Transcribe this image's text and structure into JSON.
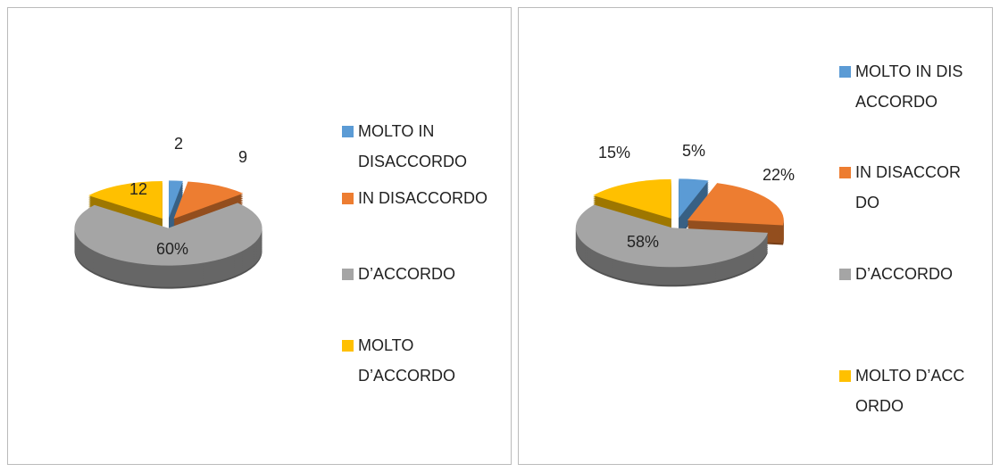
{
  "chart_data": [
    {
      "type": "pie",
      "categories": [
        "MOLTO IN DISACCORDO",
        "IN DISACCORDO",
        "D’ACCORDO",
        "MOLTO D’ACCORDO"
      ],
      "values": [
        2,
        9,
        60,
        12
      ],
      "value_labels": [
        "2",
        "9",
        "60%",
        "12"
      ],
      "colors": [
        "#5b9bd5",
        "#ed7d31",
        "#a5a5a5",
        "#ffc000"
      ]
    },
    {
      "type": "pie",
      "categories": [
        "MOLTO IN DISACCORDO",
        "IN DISACCORDO",
        "D’ACCORDO",
        "MOLTO D’ACCORDO"
      ],
      "values": [
        5,
        22,
        58,
        15
      ],
      "value_labels": [
        "5%",
        "22%",
        "58%",
        "15%"
      ],
      "colors": [
        "#5b9bd5",
        "#ed7d31",
        "#a5a5a5",
        "#ffc000"
      ]
    }
  ]
}
